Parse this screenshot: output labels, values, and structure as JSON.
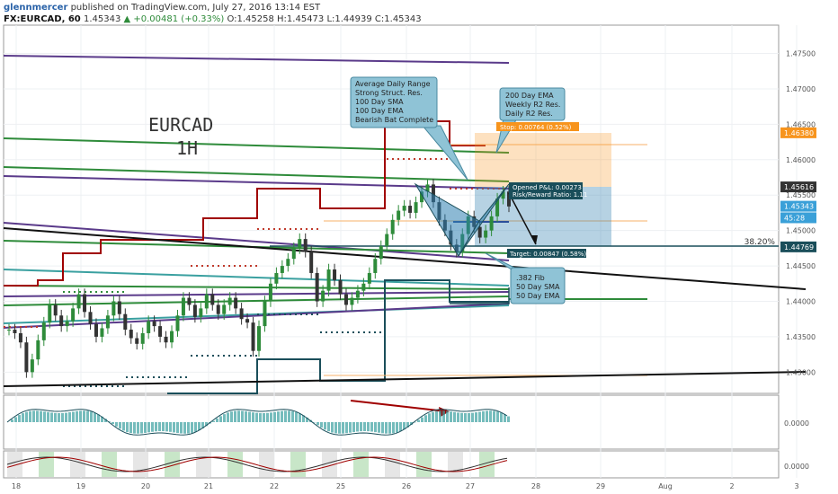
{
  "header": {
    "author": "glennmercer",
    "published": "published on TradingView.com, July 27, 2016 13:14 EST",
    "symbol": "FX:EURCAD, 60",
    "last": "1.45343",
    "change": "▲ +0.00481 (+0.33%)",
    "ohlc": "O:1.45258 H:1.45473 L:1.44939 C:1.45343"
  },
  "chart_data": {
    "type": "line",
    "title": "EURCAD",
    "subtitle": "1H",
    "series": [
      {
        "values": [
          1.436,
          1.4355,
          1.4342,
          1.43,
          1.4318,
          1.4345,
          1.437,
          1.4395,
          1.438,
          1.4365,
          1.4372,
          1.439,
          1.441,
          1.4385,
          1.4368,
          1.435,
          1.4362,
          1.438,
          1.44,
          1.4382,
          1.436,
          1.4348,
          1.434,
          1.4355,
          1.4372,
          1.4365,
          1.435,
          1.4342,
          1.4358,
          1.438,
          1.4405,
          1.4395,
          1.4378,
          1.439,
          1.441,
          1.4395,
          1.4382,
          1.4395,
          1.4405,
          1.439,
          1.4375,
          1.437,
          1.433,
          1.4365,
          1.44,
          1.4425,
          1.444,
          1.445,
          1.446,
          1.4475,
          1.4488,
          1.447,
          1.444,
          1.44,
          1.4415,
          1.4445,
          1.443,
          1.441,
          1.4395,
          1.4405,
          1.4415,
          1.4425,
          1.444,
          1.446,
          1.4478,
          1.4495,
          1.4515,
          1.4528,
          1.4535,
          1.4525,
          1.454,
          1.4555,
          1.4565,
          1.454,
          1.4515,
          1.45,
          1.448,
          1.447,
          1.4495,
          1.452,
          1.4505,
          1.449,
          1.45,
          1.452,
          1.4545,
          1.4555,
          1.4534
        ]
      }
    ],
    "x_tick_labels": [
      "18",
      "19",
      "20",
      "21",
      "22",
      "25",
      "26",
      "27",
      "28",
      "29",
      "Aug",
      "2",
      "3"
    ],
    "y_tick_labels": [
      "1.47500",
      "1.47000",
      "1.46500",
      "1.46000",
      "1.45500",
      "1.45000",
      "1.44500",
      "1.44000",
      "1.43500",
      "1.43000"
    ],
    "ylim": [
      1.427,
      1.479
    ],
    "grid": true,
    "price_labels": [
      {
        "text": "1.46380",
        "value": 1.4638,
        "color": "#f7941d"
      },
      {
        "text": "1.45616",
        "value": 1.45616,
        "color": "#333333"
      },
      {
        "text": "1.45343",
        "value": 1.45343,
        "color": "#3aa0d8"
      },
      {
        "text": "45:28",
        "value": 1.4518,
        "color": "#3aa0d8"
      },
      {
        "text": "1.44769",
        "value": 1.44769,
        "color": "#1a4e5a"
      }
    ],
    "fib_label": "38.20%",
    "annotations": {
      "resistance": [
        "Average Daily Range",
        "Strong Struct. Res.",
        "100 Day SMA",
        "100 Day EMA",
        "Bearish Bat Complete"
      ],
      "ema": [
        "200 Day EMA",
        "Weekly R2 Res.",
        "Daily R2 Res."
      ],
      "support": [
        ".382 Fib",
        "50 Day SMA",
        "50 Day EMA"
      ],
      "stop": "Stop: 0.00764 (0.52%)",
      "target": "Target: 0.00847 (0.58%)",
      "pnl": "Opened P&L: 0.00273",
      "rr": "Risk/Reward Ratio: 1.11"
    },
    "osc1_tick_label": "0.0000",
    "osc2_tick_label": "0.0000"
  },
  "colors": {
    "up": "#2e8b3a",
    "down": "#333333",
    "resistance_red": "#a00000",
    "bat_blue": "#2d7fb0",
    "stop_orange": "#f7941d",
    "target_teal": "#1a4e5a"
  }
}
